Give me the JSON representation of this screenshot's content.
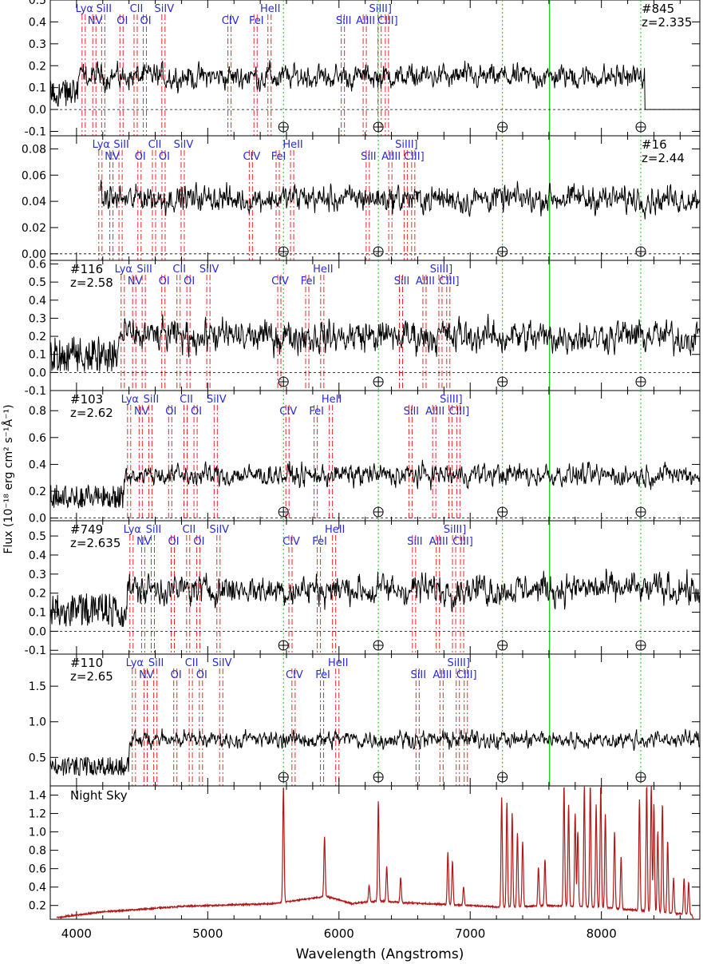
{
  "chart_data": {
    "type": "line",
    "xlabel": "Wavelength (Angstroms)",
    "ylabel": "Flux (10⁻¹⁸ erg cm² s⁻¹Å⁻¹)",
    "xlim": [
      3800,
      8750
    ],
    "x_ticks": [
      "4000",
      "5000",
      "6000",
      "7000",
      "8000"
    ],
    "x_tick_values": [
      4000,
      5000,
      6000,
      7000,
      8000
    ],
    "sky_line_markers": [
      5577,
      6300,
      7246,
      8300
    ],
    "vertical_green_line": 7605,
    "line_list": [
      {
        "name": "Lyα",
        "rest": 1215.7,
        "row": 0
      },
      {
        "name": "NV",
        "rest": 1240.1,
        "row": 1
      },
      {
        "name": "SiII",
        "rest": 1260.4,
        "row": 0
      },
      {
        "name": "OI",
        "rest": 1302.2,
        "row": 1
      },
      {
        "name": "CII",
        "rest": 1334.5,
        "row": 0
      },
      {
        "name": "OI",
        "rest": 1355.6,
        "row": 1
      },
      {
        "name": "SiIV",
        "rest": 1398.0,
        "row": 0
      },
      {
        "name": "CIV",
        "rest": 1549.0,
        "row": 1
      },
      {
        "name": "FeI",
        "rest": 1608.5,
        "row": 1
      },
      {
        "name": "HeII",
        "rest": 1640.4,
        "row": 0
      },
      {
        "name": "SiII",
        "rest": 1808.0,
        "row": 1
      },
      {
        "name": "AlIII",
        "rest": 1858.0,
        "row": 1
      },
      {
        "name": "SiIII]",
        "rest": 1892.0,
        "row": 0
      },
      {
        "name": "CIII]",
        "rest": 1908.7,
        "row": 1
      }
    ],
    "panels": [
      {
        "id": "#845",
        "z": "z=2.335",
        "label_side": "right",
        "ylim": [
          -0.12,
          0.5
        ],
        "yticks": [
          "-0.1",
          "0.0",
          "0.1",
          "0.2",
          "0.3",
          "0.4",
          "0.5"
        ],
        "ytick_values": [
          -0.1,
          0,
          0.1,
          0.2,
          0.3,
          0.4,
          0.5
        ],
        "zero_line": true,
        "level": 0.15,
        "noise": 0.055,
        "cutoff": 8330
      },
      {
        "id": "#16",
        "z": "z=2.44",
        "label_side": "right",
        "ylim": [
          -0.005,
          0.09
        ],
        "yticks": [
          "0.00",
          "0.02",
          "0.04",
          "0.06",
          "0.08"
        ],
        "ytick_values": [
          0,
          0.02,
          0.04,
          0.06,
          0.08
        ],
        "zero_line": true,
        "level": 0.042,
        "noise": 0.01,
        "start": 4180
      },
      {
        "id": "#116",
        "z": "z=2.58",
        "label_side": "left",
        "ylim": [
          -0.1,
          0.62
        ],
        "yticks": [
          "-0.1",
          "0.0",
          "0.1",
          "0.2",
          "0.3",
          "0.4",
          "0.5",
          "0.6"
        ],
        "ytick_values": [
          -0.1,
          0,
          0.1,
          0.2,
          0.3,
          0.4,
          0.5,
          0.6
        ],
        "zero_line": true,
        "level": 0.2,
        "noise": 0.09
      },
      {
        "id": "#103",
        "z": "z=2.62",
        "label_side": "left",
        "ylim": [
          -0.02,
          0.95
        ],
        "yticks": [
          "0.0",
          "0.2",
          "0.4",
          "0.6",
          "0.8"
        ],
        "ytick_values": [
          0,
          0.2,
          0.4,
          0.6,
          0.8
        ],
        "zero_line": true,
        "level": 0.32,
        "noise": 0.08
      },
      {
        "id": "#749",
        "z": "z=2.635",
        "label_side": "left",
        "ylim": [
          -0.12,
          0.58
        ],
        "yticks": [
          "-0.1",
          "0.0",
          "0.1",
          "0.2",
          "0.3",
          "0.4",
          "0.5"
        ],
        "ytick_values": [
          -0.1,
          0,
          0.1,
          0.2,
          0.3,
          0.4,
          0.5
        ],
        "zero_line": true,
        "level": 0.22,
        "noise": 0.08
      },
      {
        "id": "#110",
        "z": "z=2.65",
        "label_side": "left",
        "ylim": [
          0.1,
          1.95
        ],
        "yticks": [
          "0.5",
          "1.0",
          "1.5"
        ],
        "ytick_values": [
          0.5,
          1.0,
          1.5
        ],
        "zero_line": false,
        "level": 0.75,
        "noise": 0.12
      }
    ],
    "night_sky": {
      "label": "Night Sky",
      "ylim": [
        0.05,
        1.5
      ],
      "yticks": [
        "0.2",
        "0.4",
        "0.6",
        "0.8",
        "1.0",
        "1.2",
        "1.4"
      ],
      "ytick_values": [
        0.2,
        0.4,
        0.6,
        0.8,
        1.0,
        1.2,
        1.4
      ],
      "continuum": [
        [
          3800,
          0.06
        ],
        [
          4200,
          0.13
        ],
        [
          4800,
          0.19
        ],
        [
          5500,
          0.22
        ],
        [
          5900,
          0.3
        ],
        [
          6100,
          0.22
        ],
        [
          6300,
          0.25
        ],
        [
          6500,
          0.23
        ],
        [
          7000,
          0.2
        ],
        [
          7240,
          0.18
        ],
        [
          7600,
          0.2
        ],
        [
          8000,
          0.18
        ],
        [
          8500,
          0.12
        ],
        [
          8690,
          0.1
        ]
      ],
      "lines": [
        {
          "w": 5577,
          "h": 1.5
        },
        {
          "w": 5890,
          "h": 0.95
        },
        {
          "w": 6300,
          "h": 1.33
        },
        {
          "w": 6364,
          "h": 0.62
        },
        {
          "w": 6230,
          "h": 0.42
        },
        {
          "w": 6470,
          "h": 0.5
        },
        {
          "w": 6830,
          "h": 0.78
        },
        {
          "w": 6865,
          "h": 0.68
        },
        {
          "w": 6950,
          "h": 0.4
        },
        {
          "w": 7240,
          "h": 1.38
        },
        {
          "w": 7280,
          "h": 1.32
        },
        {
          "w": 7320,
          "h": 1.2
        },
        {
          "w": 7360,
          "h": 0.98
        },
        {
          "w": 7400,
          "h": 0.9
        },
        {
          "w": 7520,
          "h": 0.62
        },
        {
          "w": 7570,
          "h": 0.7
        },
        {
          "w": 7715,
          "h": 1.5
        },
        {
          "w": 7750,
          "h": 1.3
        },
        {
          "w": 7800,
          "h": 1.2
        },
        {
          "w": 7820,
          "h": 1.0
        },
        {
          "w": 7870,
          "h": 1.5
        },
        {
          "w": 7915,
          "h": 1.5
        },
        {
          "w": 7960,
          "h": 1.3
        },
        {
          "w": 7995,
          "h": 1.5
        },
        {
          "w": 8030,
          "h": 1.2
        },
        {
          "w": 8100,
          "h": 1.0
        },
        {
          "w": 8150,
          "h": 0.72
        },
        {
          "w": 8290,
          "h": 1.35
        },
        {
          "w": 8345,
          "h": 1.5
        },
        {
          "w": 8380,
          "h": 1.5
        },
        {
          "w": 8400,
          "h": 1.3
        },
        {
          "w": 8430,
          "h": 1.0
        },
        {
          "w": 8465,
          "h": 1.3
        },
        {
          "w": 8505,
          "h": 0.9
        },
        {
          "w": 8550,
          "h": 0.5
        },
        {
          "w": 8630,
          "h": 0.5
        },
        {
          "w": 8665,
          "h": 0.45
        }
      ]
    }
  }
}
